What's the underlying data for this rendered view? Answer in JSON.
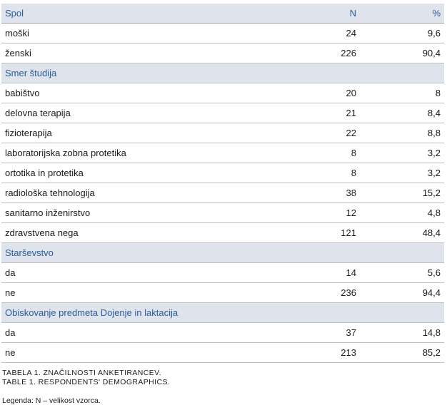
{
  "table": {
    "header": {
      "label": "Spol",
      "n": "N",
      "pct": "%"
    },
    "sections": [
      {
        "title": "Spol",
        "is_header": true,
        "rows": [
          {
            "label": "moški",
            "n": "24",
            "pct": "9,6"
          },
          {
            "label": "ženski",
            "n": "226",
            "pct": "90,4"
          }
        ]
      },
      {
        "title": "Smer študija",
        "rows": [
          {
            "label": "babištvo",
            "n": "20",
            "pct": "8"
          },
          {
            "label": "delovna terapija",
            "n": "21",
            "pct": "8,4"
          },
          {
            "label": "fizioterapija",
            "n": "22",
            "pct": "8,8"
          },
          {
            "label": "laboratorijska zobna protetika",
            "n": "8",
            "pct": "3,2"
          },
          {
            "label": "ortotika in protetika",
            "n": "8",
            "pct": "3,2"
          },
          {
            "label": "radiološka tehnologija",
            "n": "38",
            "pct": "15,2"
          },
          {
            "label": "sanitarno inženirstvo",
            "n": "12",
            "pct": "4,8"
          },
          {
            "label": "zdravstvena nega",
            "n": "121",
            "pct": "48,4"
          }
        ]
      },
      {
        "title": "Starševstvo",
        "rows": [
          {
            "label": "da",
            "n": "14",
            "pct": "5,6"
          },
          {
            "label": "ne",
            "n": "236",
            "pct": "94,4"
          }
        ]
      },
      {
        "title": "Obiskovanje predmeta Dojenje in laktacija",
        "rows": [
          {
            "label": "da",
            "n": "37",
            "pct": "14,8"
          },
          {
            "label": "ne",
            "n": "213",
            "pct": "85,2"
          }
        ]
      }
    ]
  },
  "caption": {
    "line1": "TABELA 1. ZNAČILNOSTI ANKETIRANCEV.",
    "line2": "TABLE 1. RESPONDENTS' DEMOGRAPHICS."
  },
  "legend": "Legenda: N – velikost vzorca.",
  "colors": {
    "header_bg": "#dfe3ec",
    "header_text": "#2a5d9a",
    "rule": "#b9bfc8"
  }
}
